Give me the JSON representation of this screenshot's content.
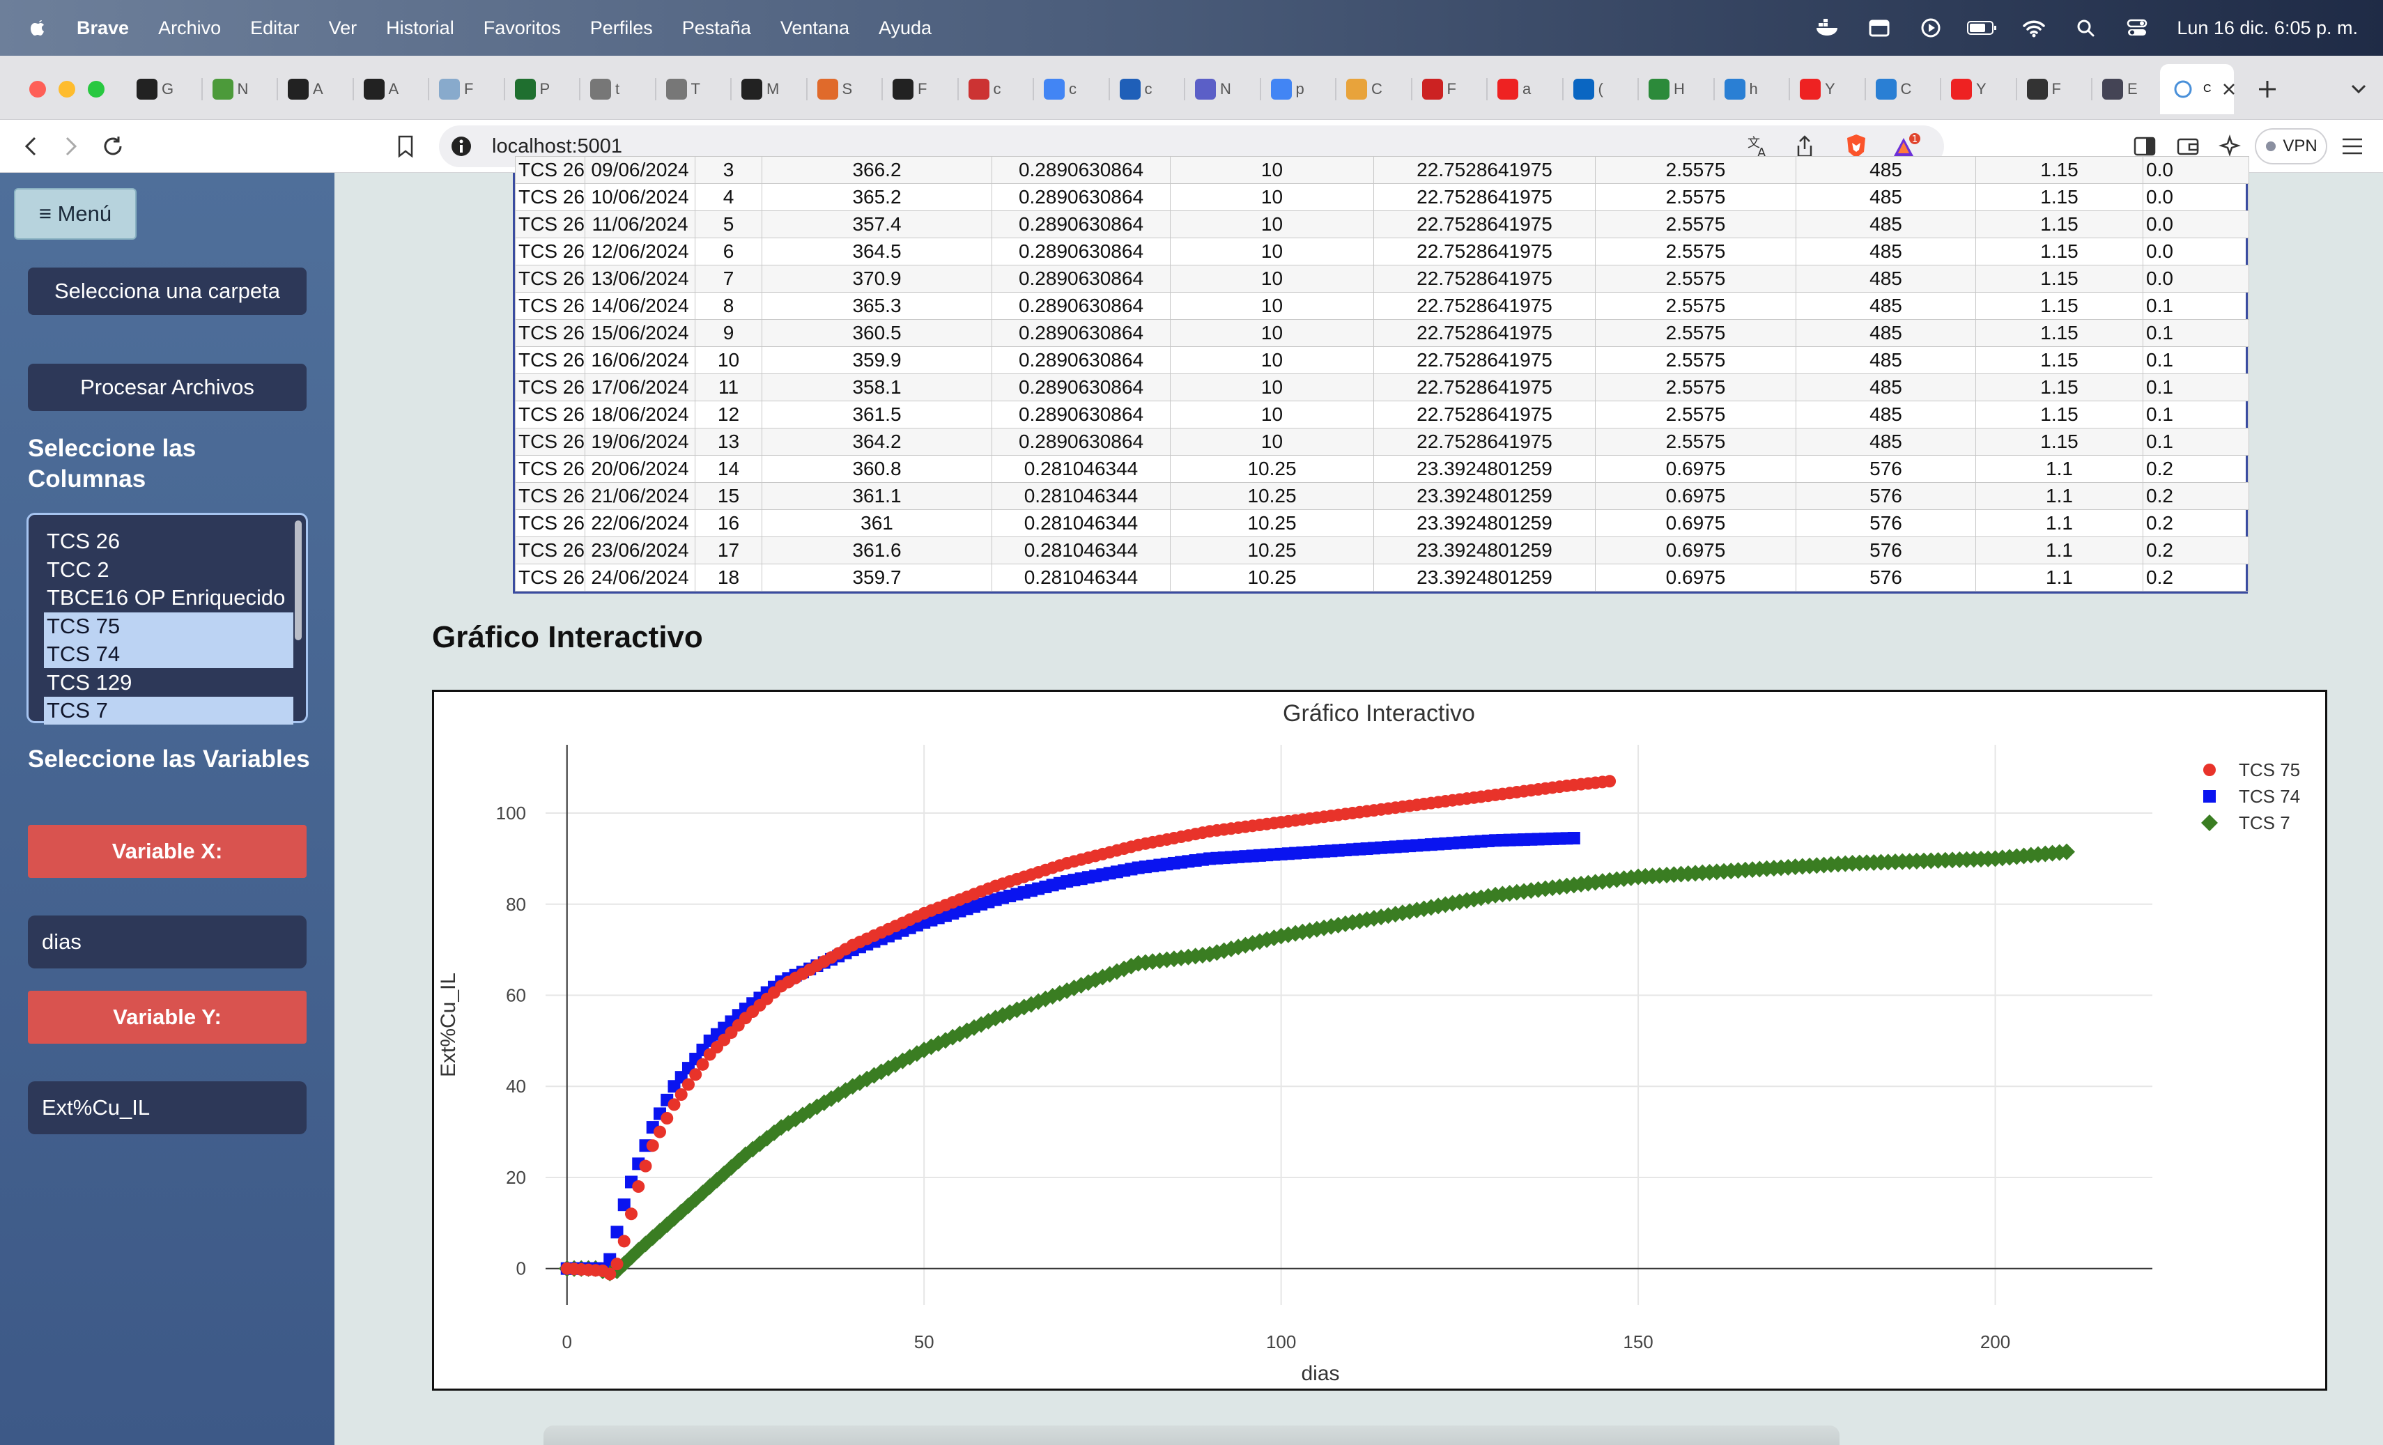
{
  "menubar": {
    "app_name": "Brave",
    "items": [
      "Archivo",
      "Editar",
      "Ver",
      "Historial",
      "Favoritos",
      "Perfiles",
      "Pestaña",
      "Ventana",
      "Ayuda"
    ],
    "clock": "Lun 16 dic.  6:05 p. m."
  },
  "tabs": [
    {
      "letter": "G",
      "color": "#222"
    },
    {
      "letter": "N",
      "color": "#4c9a3a"
    },
    {
      "letter": "A",
      "color": "#222"
    },
    {
      "letter": "A",
      "color": "#222"
    },
    {
      "letter": "F",
      "color": "#88aacc"
    },
    {
      "letter": "P",
      "color": "#1f6f2f"
    },
    {
      "letter": "t",
      "color": "#777"
    },
    {
      "letter": "T",
      "color": "#777"
    },
    {
      "letter": "M",
      "color": "#222"
    },
    {
      "letter": "S",
      "color": "#e06a2b"
    },
    {
      "letter": "F",
      "color": "#222"
    },
    {
      "letter": "c",
      "color": "#c33"
    },
    {
      "letter": "c",
      "color": "#4285f4"
    },
    {
      "letter": "c",
      "color": "#1f5fb8"
    },
    {
      "letter": "N",
      "color": "#5b5fc7"
    },
    {
      "letter": "p",
      "color": "#4285f4"
    },
    {
      "letter": "C",
      "color": "#e8a33b"
    },
    {
      "letter": "F",
      "color": "#c22"
    },
    {
      "letter": "a",
      "color": "#e22"
    },
    {
      "letter": "(",
      "color": "#0a66c2"
    },
    {
      "letter": "H",
      "color": "#2c8a3a"
    },
    {
      "letter": "h",
      "color": "#2a7fd4"
    },
    {
      "letter": "Y",
      "color": "#e22"
    },
    {
      "letter": "C",
      "color": "#2a7fd4"
    },
    {
      "letter": "Y",
      "color": "#e22"
    },
    {
      "letter": "F",
      "color": "#333"
    },
    {
      "letter": "E",
      "color": "#445"
    }
  ],
  "active_tab": {
    "letter": "C"
  },
  "address": {
    "url": "localhost:5001"
  },
  "toolbar": {
    "vpn_label": "VPN",
    "shields_badge": "1"
  },
  "sidebar": {
    "menu_label": "≡ Menú",
    "select_folder": "Selecciona una carpeta",
    "process_files": "Procesar Archivos",
    "columns_heading": "Seleccione las Columnas",
    "columns": [
      {
        "label": "TCS 26",
        "selected": false
      },
      {
        "label": "TCC 2",
        "selected": false
      },
      {
        "label": "TBCE16 OP Enriquecido",
        "selected": false
      },
      {
        "label": "TCS 75",
        "selected": true
      },
      {
        "label": "TCS 74",
        "selected": true
      },
      {
        "label": "TCS 129",
        "selected": false
      },
      {
        "label": "TCS 7",
        "selected": true
      }
    ],
    "variables_heading": "Seleccione las Variables",
    "var_x_label": "Variable X:",
    "var_x_value": "dias",
    "var_y_label": "Variable Y:",
    "var_y_value": "Ext%Cu_IL"
  },
  "table": {
    "rows": [
      [
        "TCS 26",
        "09/06/2024",
        "3",
        "366.2",
        "0.2890630864",
        "10",
        "22.7528641975",
        "2.5575",
        "485",
        "1.15",
        "0.0"
      ],
      [
        "TCS 26",
        "10/06/2024",
        "4",
        "365.2",
        "0.2890630864",
        "10",
        "22.7528641975",
        "2.5575",
        "485",
        "1.15",
        "0.0"
      ],
      [
        "TCS 26",
        "11/06/2024",
        "5",
        "357.4",
        "0.2890630864",
        "10",
        "22.7528641975",
        "2.5575",
        "485",
        "1.15",
        "0.0"
      ],
      [
        "TCS 26",
        "12/06/2024",
        "6",
        "364.5",
        "0.2890630864",
        "10",
        "22.7528641975",
        "2.5575",
        "485",
        "1.15",
        "0.0"
      ],
      [
        "TCS 26",
        "13/06/2024",
        "7",
        "370.9",
        "0.2890630864",
        "10",
        "22.7528641975",
        "2.5575",
        "485",
        "1.15",
        "0.0"
      ],
      [
        "TCS 26",
        "14/06/2024",
        "8",
        "365.3",
        "0.2890630864",
        "10",
        "22.7528641975",
        "2.5575",
        "485",
        "1.15",
        "0.1"
      ],
      [
        "TCS 26",
        "15/06/2024",
        "9",
        "360.5",
        "0.2890630864",
        "10",
        "22.7528641975",
        "2.5575",
        "485",
        "1.15",
        "0.1"
      ],
      [
        "TCS 26",
        "16/06/2024",
        "10",
        "359.9",
        "0.2890630864",
        "10",
        "22.7528641975",
        "2.5575",
        "485",
        "1.15",
        "0.1"
      ],
      [
        "TCS 26",
        "17/06/2024",
        "11",
        "358.1",
        "0.2890630864",
        "10",
        "22.7528641975",
        "2.5575",
        "485",
        "1.15",
        "0.1"
      ],
      [
        "TCS 26",
        "18/06/2024",
        "12",
        "361.5",
        "0.2890630864",
        "10",
        "22.7528641975",
        "2.5575",
        "485",
        "1.15",
        "0.1"
      ],
      [
        "TCS 26",
        "19/06/2024",
        "13",
        "364.2",
        "0.2890630864",
        "10",
        "22.7528641975",
        "2.5575",
        "485",
        "1.15",
        "0.1"
      ],
      [
        "TCS 26",
        "20/06/2024",
        "14",
        "360.8",
        "0.281046344",
        "10.25",
        "23.3924801259",
        "0.6975",
        "576",
        "1.1",
        "0.2"
      ],
      [
        "TCS 26",
        "21/06/2024",
        "15",
        "361.1",
        "0.281046344",
        "10.25",
        "23.3924801259",
        "0.6975",
        "576",
        "1.1",
        "0.2"
      ],
      [
        "TCS 26",
        "22/06/2024",
        "16",
        "361",
        "0.281046344",
        "10.25",
        "23.3924801259",
        "0.6975",
        "576",
        "1.1",
        "0.2"
      ],
      [
        "TCS 26",
        "23/06/2024",
        "17",
        "361.6",
        "0.281046344",
        "10.25",
        "23.3924801259",
        "0.6975",
        "576",
        "1.1",
        "0.2"
      ],
      [
        "TCS 26",
        "24/06/2024",
        "18",
        "359.7",
        "0.281046344",
        "10.25",
        "23.3924801259",
        "0.6975",
        "576",
        "1.1",
        "0.2"
      ]
    ]
  },
  "chart_section_title": "Gráfico Interactivo",
  "chart_data": {
    "type": "scatter",
    "title": "Gráfico Interactivo",
    "xlabel": "dias",
    "ylabel": "Ext%Cu_IL",
    "xlim": [
      -3,
      222
    ],
    "ylim": [
      -8,
      115
    ],
    "xticks": [
      0,
      50,
      100,
      150,
      200
    ],
    "yticks": [
      0,
      20,
      40,
      60,
      80,
      100
    ],
    "grid": true,
    "legend_position": "top-right",
    "series": [
      {
        "name": "TCS 75",
        "marker": "circle",
        "color": "#e8332a",
        "x_max": 146,
        "curve": [
          [
            0,
            0
          ],
          [
            5,
            -0.5
          ],
          [
            6,
            -1.2
          ],
          [
            7,
            1
          ],
          [
            8,
            6
          ],
          [
            9,
            12
          ],
          [
            10,
            18
          ],
          [
            12,
            27
          ],
          [
            15,
            36
          ],
          [
            20,
            47
          ],
          [
            25,
            55
          ],
          [
            30,
            62
          ],
          [
            40,
            71
          ],
          [
            50,
            78
          ],
          [
            60,
            84
          ],
          [
            70,
            89
          ],
          [
            80,
            93
          ],
          [
            90,
            96
          ],
          [
            100,
            98
          ],
          [
            110,
            100
          ],
          [
            120,
            102
          ],
          [
            130,
            104
          ],
          [
            140,
            106
          ],
          [
            146,
            107
          ]
        ]
      },
      {
        "name": "TCS 74",
        "marker": "square",
        "color": "#0a14f0",
        "x_max": 141,
        "curve": [
          [
            0,
            0
          ],
          [
            5,
            0
          ],
          [
            6,
            2
          ],
          [
            7,
            8
          ],
          [
            8,
            14
          ],
          [
            9,
            19
          ],
          [
            10,
            23
          ],
          [
            12,
            31
          ],
          [
            15,
            40
          ],
          [
            20,
            50
          ],
          [
            25,
            57
          ],
          [
            30,
            63
          ],
          [
            40,
            70
          ],
          [
            50,
            76
          ],
          [
            60,
            81
          ],
          [
            70,
            85
          ],
          [
            80,
            88
          ],
          [
            90,
            90
          ],
          [
            100,
            91
          ],
          [
            110,
            92
          ],
          [
            120,
            93
          ],
          [
            130,
            94
          ],
          [
            141,
            94.5
          ]
        ]
      },
      {
        "name": "TCS 7",
        "marker": "diamond",
        "color": "#3a7d22",
        "x_max": 210,
        "curve": [
          [
            0,
            0
          ],
          [
            4,
            0
          ],
          [
            6,
            -1
          ],
          [
            7,
            -0.5
          ],
          [
            8,
            1
          ],
          [
            10,
            4
          ],
          [
            15,
            11
          ],
          [
            20,
            18
          ],
          [
            25,
            25
          ],
          [
            30,
            31
          ],
          [
            40,
            40
          ],
          [
            50,
            48
          ],
          [
            60,
            55
          ],
          [
            70,
            61
          ],
          [
            80,
            67
          ],
          [
            90,
            69
          ],
          [
            100,
            73
          ],
          [
            110,
            76
          ],
          [
            120,
            79
          ],
          [
            130,
            82
          ],
          [
            140,
            84
          ],
          [
            150,
            86
          ],
          [
            160,
            87
          ],
          [
            170,
            88
          ],
          [
            180,
            89
          ],
          [
            190,
            89.5
          ],
          [
            200,
            90
          ],
          [
            210,
            91.5
          ]
        ]
      }
    ]
  }
}
